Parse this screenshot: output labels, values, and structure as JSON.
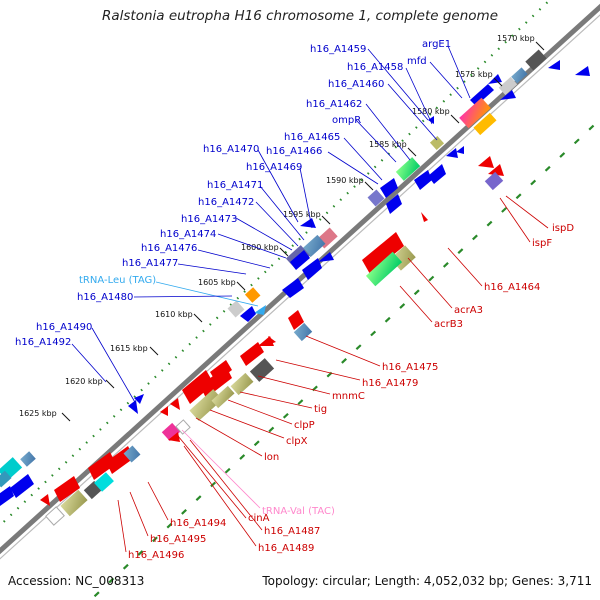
{
  "title": "Ralstonia eutropha H16 chromosome 1, complete genome",
  "footer": {
    "accession": "Accession: NC_008313",
    "summary": "Topology: circular; Length: 4,052,032 bp; Genes: 3,711"
  },
  "colors": {
    "forward": "#0000ee",
    "reverse": "#ee0000",
    "trna_forward": "#33aaee",
    "trna_reverse": "#ff88cc",
    "backbone": "#7a7a7a",
    "track_dots": "#2a8a2a"
  },
  "kbp_labels": [
    "1570 kbp",
    "1575 kbp",
    "1580 kbp",
    "1585 kbp",
    "1590 kbp",
    "1595 kbp",
    "1600 kbp",
    "1605 kbp",
    "1610 kbp",
    "1615 kbp",
    "1620 kbp",
    "1625 kbp"
  ],
  "forward_labels": [
    "argE1",
    "mfd",
    "h16_A1459",
    "h16_A1458",
    "h16_A1460",
    "h16_A1462",
    "ompR",
    "h16_A1465",
    "h16_A1466",
    "h16_A1470",
    "h16_A1469",
    "h16_A1471",
    "h16_A1472",
    "h16_A1473",
    "h16_A1474",
    "h16_A1476",
    "h16_A1477",
    "tRNA-Leu (TAG)",
    "h16_A1480",
    "h16_A1490",
    "h16_A1492"
  ],
  "reverse_labels": [
    "ispD",
    "ispF",
    "h16_A1464",
    "acrA3",
    "acrB3",
    "h16_A1475",
    "h16_A1479",
    "mnmC",
    "tig",
    "clpP",
    "clpX",
    "lon",
    "tRNA-Val (TAC)",
    "cinA",
    "h16_A1487",
    "h16_A1489",
    "h16_A1494",
    "h16_A1495",
    "h16_A1496"
  ]
}
